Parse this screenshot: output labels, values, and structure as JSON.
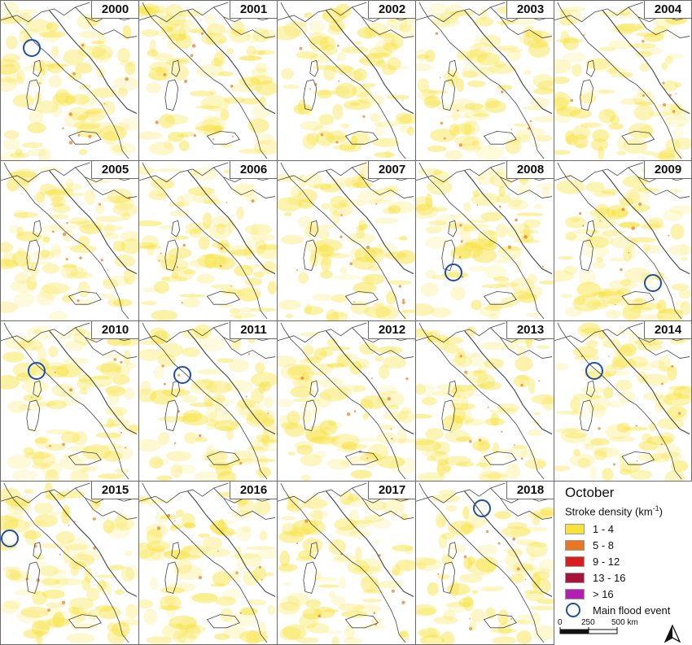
{
  "panels": [
    {
      "year": "2000",
      "flood": true
    },
    {
      "year": "2001",
      "flood": false
    },
    {
      "year": "2002",
      "flood": false
    },
    {
      "year": "2003",
      "flood": false
    },
    {
      "year": "2004",
      "flood": false
    },
    {
      "year": "2005",
      "flood": false
    },
    {
      "year": "2006",
      "flood": false
    },
    {
      "year": "2007",
      "flood": false
    },
    {
      "year": "2008",
      "flood": true
    },
    {
      "year": "2009",
      "flood": true
    },
    {
      "year": "2010",
      "flood": true
    },
    {
      "year": "2011",
      "flood": true
    },
    {
      "year": "2012",
      "flood": false
    },
    {
      "year": "2013",
      "flood": false
    },
    {
      "year": "2014",
      "flood": true
    },
    {
      "year": "2015",
      "flood": true
    },
    {
      "year": "2016",
      "flood": false
    },
    {
      "year": "2017",
      "flood": false
    },
    {
      "year": "2018",
      "flood": true
    }
  ],
  "legend": {
    "title": "October",
    "subtitle_text": "Stroke density (km",
    "subtitle_exp": "-1",
    "subtitle_close": ")",
    "classes": [
      {
        "label": "1 - 4",
        "color": "#f7e23c"
      },
      {
        "label": "5 - 8",
        "color": "#e87722"
      },
      {
        "label": "9 - 12",
        "color": "#d81e1e"
      },
      {
        "label": "13 - 16",
        "color": "#a8143c"
      },
      {
        "label": "> 16",
        "color": "#b31fb3"
      }
    ],
    "flood_label": "Main flood event",
    "flood_color": "#1d4fa8"
  },
  "scale": {
    "tick0": "0",
    "tick1": "250",
    "tick2": "500 km"
  },
  "colors": {
    "border": "#6b6b6b",
    "coast": "#444444",
    "density_low": "#f7e23c"
  }
}
